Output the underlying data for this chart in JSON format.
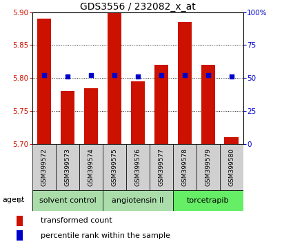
{
  "title": "GDS3556 / 232082_x_at",
  "samples": [
    "GSM399572",
    "GSM399573",
    "GSM399574",
    "GSM399575",
    "GSM399576",
    "GSM399577",
    "GSM399578",
    "GSM399579",
    "GSM399580"
  ],
  "transformed_counts": [
    5.89,
    5.78,
    5.785,
    5.905,
    5.795,
    5.82,
    5.885,
    5.82,
    5.71
  ],
  "percentile_ranks": [
    52,
    51,
    52,
    52,
    51,
    52,
    52,
    52,
    51
  ],
  "ylim_left": [
    5.7,
    5.9
  ],
  "ylim_right": [
    0,
    100
  ],
  "yticks_left": [
    5.7,
    5.75,
    5.8,
    5.85,
    5.9
  ],
  "yticks_right": [
    0,
    25,
    50,
    75,
    100
  ],
  "bar_color": "#cc1100",
  "dot_color": "#0000cc",
  "bar_width": 0.6,
  "group_colors": [
    "#aaddaa",
    "#aaddaa",
    "#66ee66"
  ],
  "group_labels": [
    "solvent control",
    "angiotensin II",
    "torcetrapib"
  ],
  "group_ranges": [
    [
      0,
      2
    ],
    [
      3,
      5
    ],
    [
      6,
      8
    ]
  ],
  "agent_label": "agent",
  "legend_labels": [
    "transformed count",
    "percentile rank within the sample"
  ],
  "legend_colors": [
    "#cc1100",
    "#0000cc"
  ],
  "title_fontsize": 10,
  "tick_fontsize": 7.5,
  "sample_fontsize": 6.5,
  "group_fontsize": 8,
  "legend_fontsize": 8
}
